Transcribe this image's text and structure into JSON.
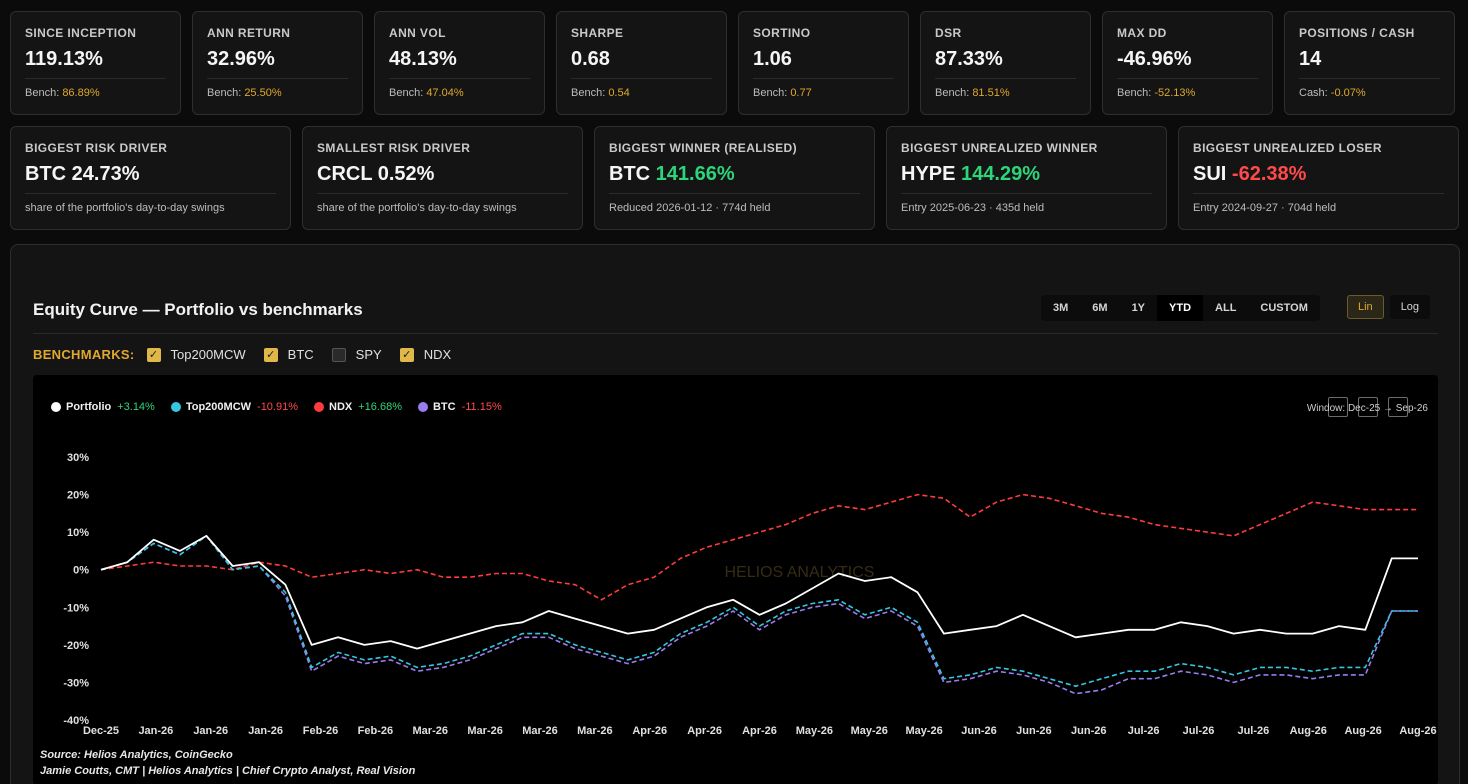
{
  "kpis": [
    {
      "label": "SINCE INCEPTION",
      "value": "119.13%",
      "sub_prefix": "Bench: ",
      "sub_value": "86.89%"
    },
    {
      "label": "ANN RETURN",
      "value": "32.96%",
      "sub_prefix": "Bench: ",
      "sub_value": "25.50%"
    },
    {
      "label": "ANN VOL",
      "value": "48.13%",
      "sub_prefix": "Bench: ",
      "sub_value": "47.04%"
    },
    {
      "label": "SHARPE",
      "value": "0.68",
      "sub_prefix": "Bench: ",
      "sub_value": "0.54"
    },
    {
      "label": "SORTINO",
      "value": "1.06",
      "sub_prefix": "Bench: ",
      "sub_value": "0.77"
    },
    {
      "label": "DSR",
      "value": "87.33%",
      "sub_prefix": "Bench: ",
      "sub_value": "81.51%"
    },
    {
      "label": "MAX DD",
      "value": "-46.96%",
      "sub_prefix": "Bench: ",
      "sub_value": "-52.13%"
    },
    {
      "label": "POSITIONS / CASH",
      "value": "14",
      "sub_prefix": "Cash: ",
      "sub_value": "-0.07%"
    }
  ],
  "risk_cards": [
    {
      "label": "BIGGEST RISK DRIVER",
      "asset": "BTC",
      "value": "24.73%",
      "value_color": "white",
      "sub": "share of the portfolio's day-to-day swings"
    },
    {
      "label": "SMALLEST RISK DRIVER",
      "asset": "CRCL",
      "value": "0.52%",
      "value_color": "white",
      "sub": "share of the portfolio's day-to-day swings"
    },
    {
      "label": "BIGGEST WINNER (REALISED)",
      "asset": "BTC",
      "value": "141.66%",
      "value_color": "green",
      "sub": "Reduced 2026-01-12 · 774d held"
    },
    {
      "label": "BIGGEST UNREALIZED WINNER",
      "asset": "HYPE",
      "value": "144.29%",
      "value_color": "green",
      "sub": "Entry 2025-06-23 · 435d held"
    },
    {
      "label": "BIGGEST UNREALIZED LOSER",
      "asset": "SUI",
      "value": "-62.38%",
      "value_color": "red",
      "sub": "Entry 2024-09-27 · 704d held"
    }
  ],
  "panel": {
    "title": "Equity Curve — Portfolio vs benchmarks",
    "ranges": [
      "3M",
      "6M",
      "1Y",
      "YTD",
      "ALL",
      "CUSTOM"
    ],
    "active_range": "YTD",
    "scales": [
      "Lin",
      "Log"
    ],
    "active_scale": "Lin",
    "benchmarks_label": "BENCHMARKS:",
    "benchmarks": [
      {
        "name": "Top200MCW",
        "checked": true
      },
      {
        "name": "BTC",
        "checked": true
      },
      {
        "name": "SPY",
        "checked": false
      },
      {
        "name": "NDX",
        "checked": true
      }
    ],
    "window_text": "Window: Dec-25 → Sep-26",
    "watermark": "HELIOS ANALYTICS",
    "source": "Source: Helios Analytics, CoinGecko",
    "credit": "Jamie Coutts, CMT | Helios Analytics | Chief Crypto Analyst, Real Vision"
  },
  "colors": {
    "portfolio": "#ffffff",
    "top200": "#35c6e0",
    "ndx": "#ff3b3b",
    "btc": "#9b7cf0",
    "gold": "#e0a82e",
    "green": "#2ed47a",
    "red": "#ff4a4a"
  },
  "chart_data": {
    "type": "line",
    "legend": [
      {
        "name": "Portfolio",
        "change": "+3.14%"
      },
      {
        "name": "Top200MCW",
        "change": "-10.91%"
      },
      {
        "name": "NDX",
        "change": "+16.68%"
      },
      {
        "name": "BTC",
        "change": "-11.15%"
      }
    ],
    "x_tick_labels": [
      "Dec-25",
      "Jan-26",
      "Jan-26",
      "Jan-26",
      "Feb-26",
      "Feb-26",
      "Mar-26",
      "Mar-26",
      "Mar-26",
      "Mar-26",
      "Apr-26",
      "Apr-26",
      "Apr-26",
      "May-26",
      "May-26",
      "May-26",
      "Jun-26",
      "Jun-26",
      "Jun-26",
      "Jul-26",
      "Jul-26",
      "Jul-26",
      "Aug-26",
      "Aug-26",
      "Aug-26"
    ],
    "y_ticks": [
      30,
      20,
      10,
      0,
      -10,
      -20,
      -30,
      -40
    ],
    "y_tick_labels": [
      "30%",
      "20%",
      "10%",
      "0%",
      "-10%",
      "-20%",
      "-30%",
      "-40%"
    ],
    "ylim": [
      -40,
      30
    ],
    "x_positions": [
      0,
      1,
      2,
      3,
      4,
      5,
      6,
      7,
      8,
      9,
      10,
      11,
      12,
      13,
      14,
      15,
      16,
      17,
      18,
      19,
      20,
      21,
      22,
      23,
      24,
      25,
      26,
      27,
      28,
      29,
      30,
      31,
      32,
      33,
      34,
      35,
      36,
      37,
      38,
      39,
      40,
      41,
      42,
      43,
      44,
      45,
      46,
      47,
      48,
      49,
      50
    ],
    "series": [
      {
        "name": "Portfolio",
        "style": "solid",
        "values": [
          0,
          2,
          8,
          5,
          9,
          1,
          2,
          -4,
          -20,
          -18,
          -20,
          -19,
          -21,
          -19,
          -17,
          -15,
          -14,
          -11,
          -13,
          -15,
          -17,
          -16,
          -13,
          -10,
          -8,
          -12,
          -9,
          -5,
          -1,
          -3,
          -2,
          -6,
          -17,
          -16,
          -15,
          -12,
          -15,
          -18,
          -17,
          -16,
          -16,
          -14,
          -15,
          -17,
          -16,
          -17,
          -17,
          -15,
          -16,
          3,
          3
        ]
      },
      {
        "name": "Top200MCW",
        "style": "dashed",
        "values": [
          0,
          2,
          7,
          4,
          9,
          0,
          1,
          -6,
          -26,
          -22,
          -24,
          -23,
          -26,
          -25,
          -23,
          -20,
          -17,
          -17,
          -20,
          -22,
          -24,
          -22,
          -17,
          -14,
          -10,
          -15,
          -11,
          -9,
          -8,
          -12,
          -10,
          -14,
          -29,
          -28,
          -26,
          -27,
          -29,
          -31,
          -29,
          -27,
          -27,
          -25,
          -26,
          -28,
          -26,
          -26,
          -27,
          -26,
          -26,
          -11,
          -11
        ]
      },
      {
        "name": "BTC",
        "style": "dashed",
        "values": [
          0,
          2,
          7,
          4,
          9,
          0,
          1,
          -7,
          -27,
          -23,
          -25,
          -24,
          -27,
          -26,
          -24,
          -21,
          -18,
          -18,
          -21,
          -23,
          -25,
          -23,
          -18,
          -15,
          -11,
          -16,
          -12,
          -10,
          -9,
          -13,
          -11,
          -15,
          -30,
          -29,
          -27,
          -28,
          -30,
          -33,
          -32,
          -29,
          -29,
          -27,
          -28,
          -30,
          -28,
          -28,
          -29,
          -28,
          -28,
          -11,
          -11
        ]
      },
      {
        "name": "NDX",
        "style": "dashed",
        "values": [
          0,
          1,
          2,
          1,
          1,
          0,
          2,
          1,
          -2,
          -1,
          0,
          -1,
          0,
          -2,
          -2,
          -1,
          -1,
          -3,
          -4,
          -8,
          -4,
          -2,
          3,
          6,
          8,
          10,
          12,
          15,
          17,
          16,
          18,
          20,
          19,
          14,
          18,
          20,
          19,
          17,
          15,
          14,
          12,
          11,
          10,
          9,
          12,
          15,
          18,
          17,
          16,
          16,
          16
        ]
      }
    ]
  }
}
